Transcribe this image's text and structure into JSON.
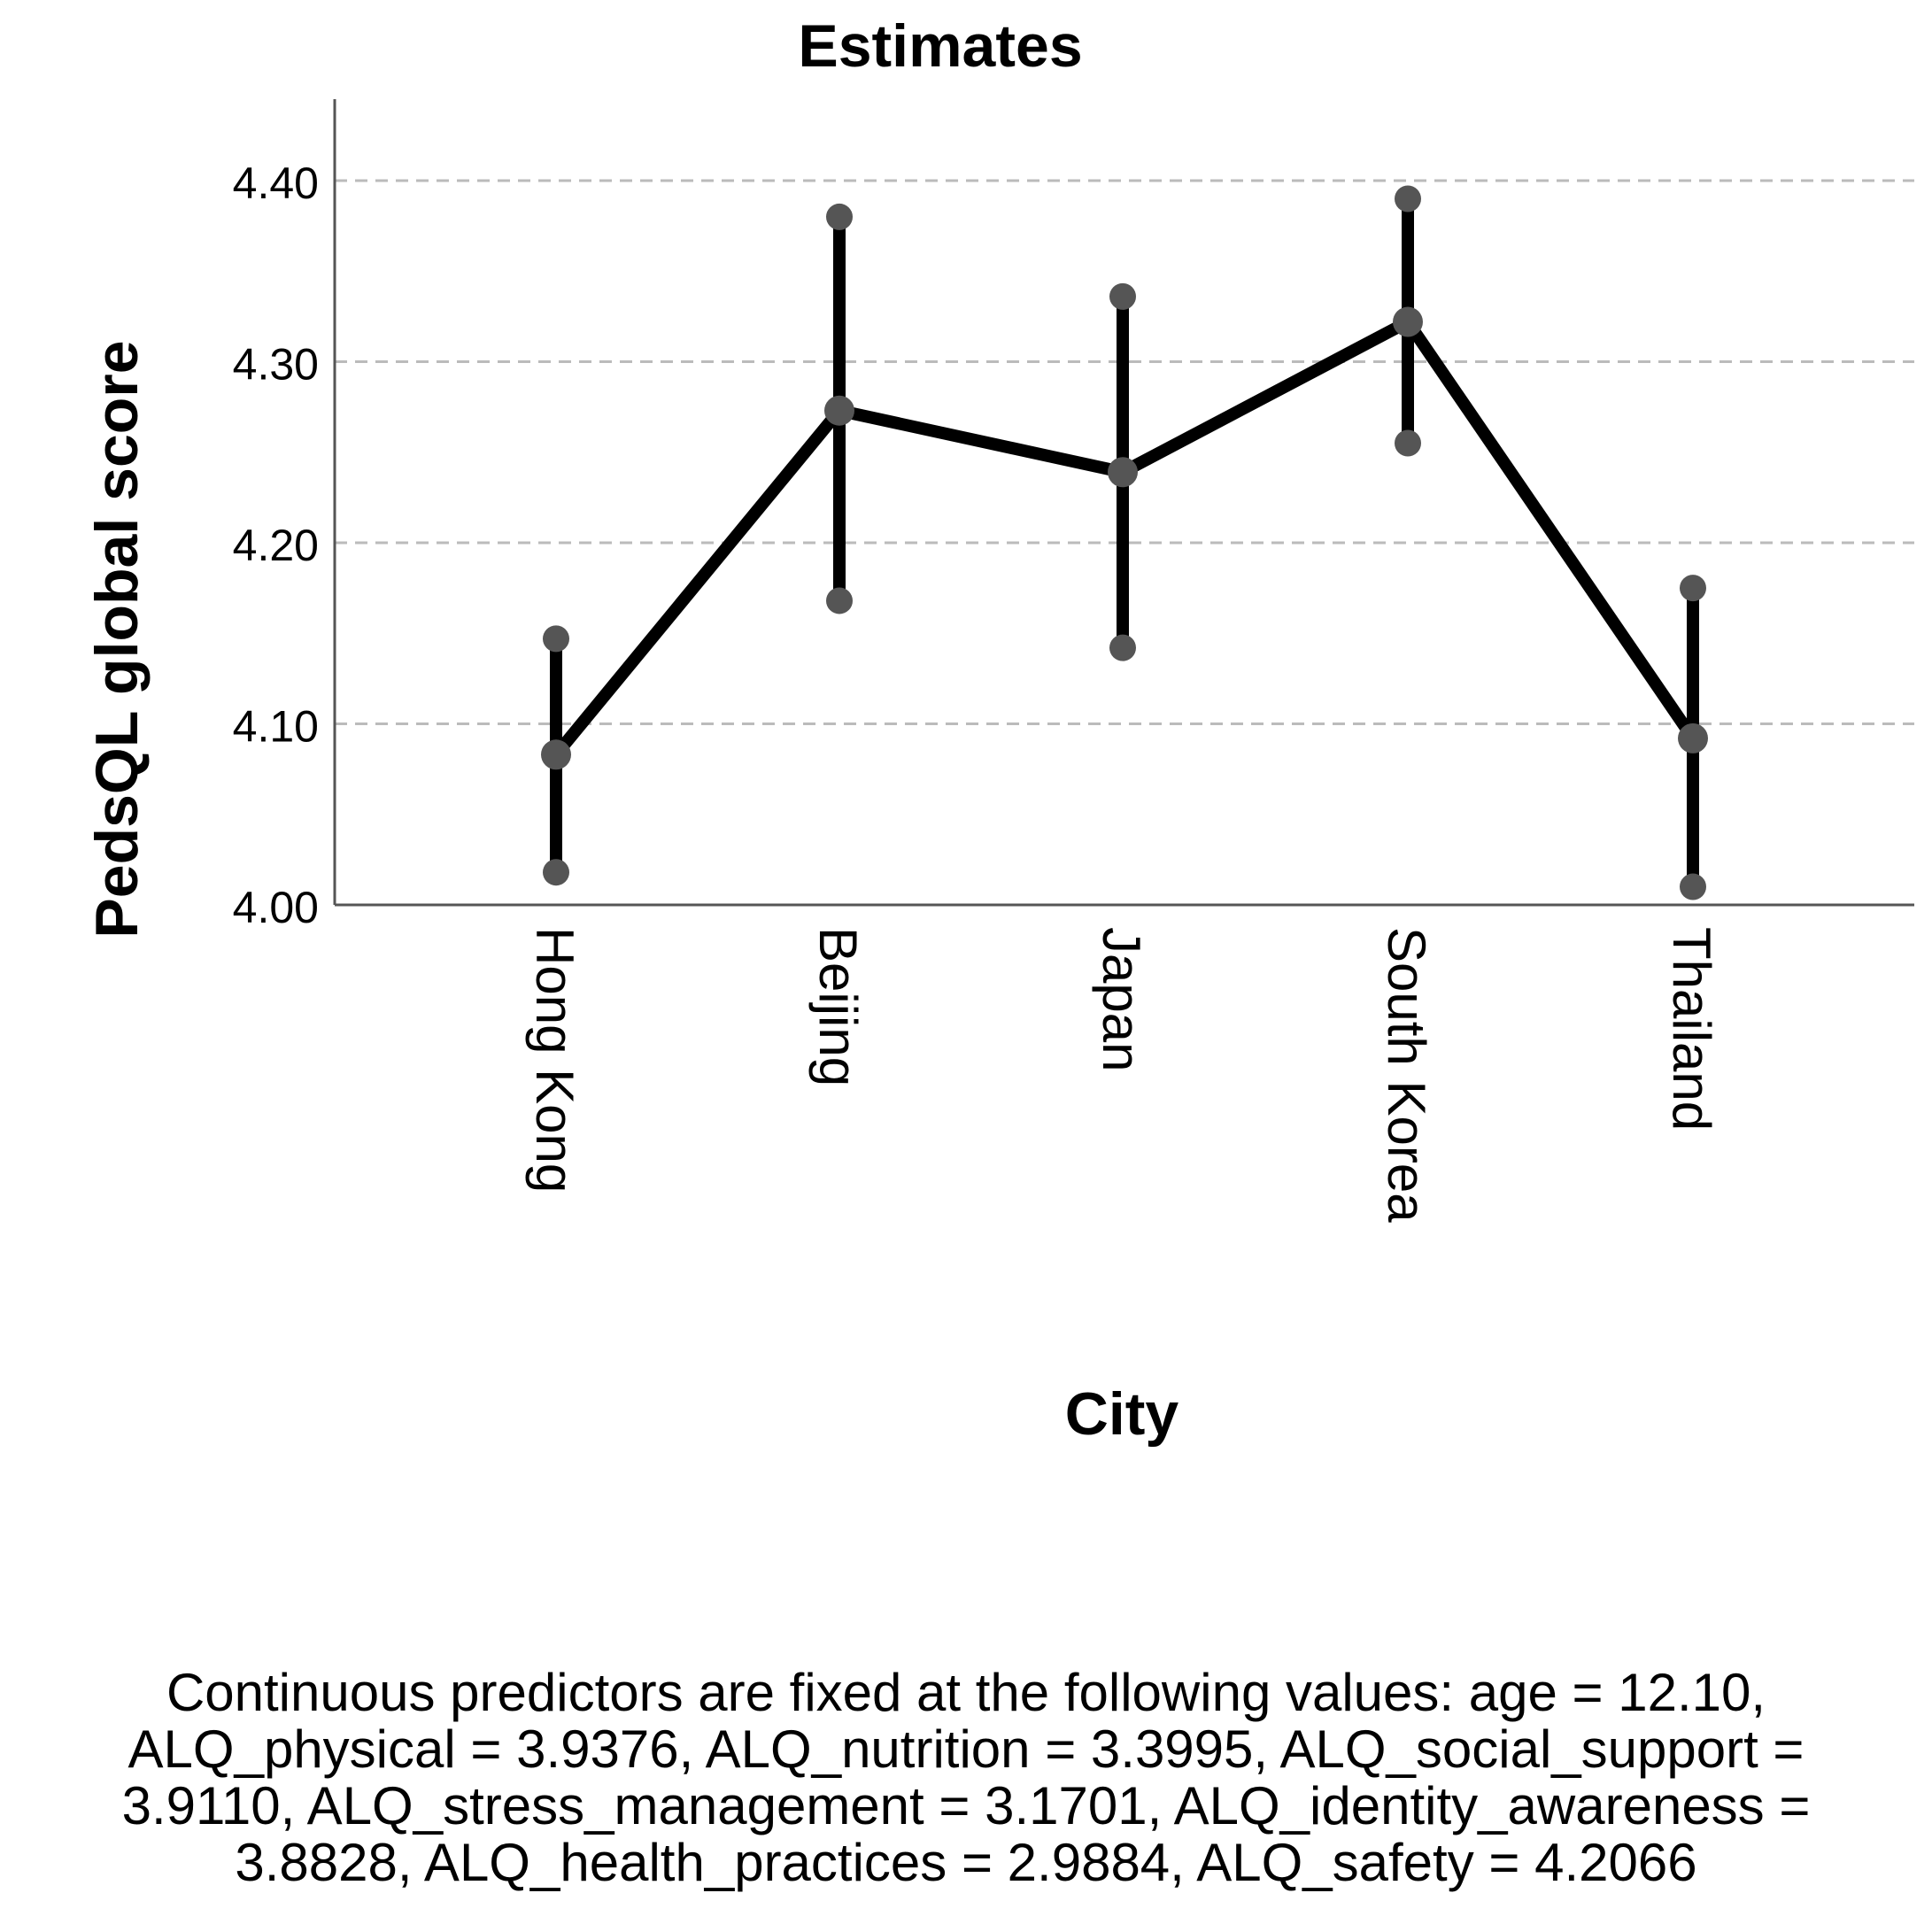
{
  "chart_data": {
    "type": "line",
    "title": "Estimates",
    "xlabel": "City",
    "ylabel": "PedsQL global score",
    "categories": [
      "Hong Kong",
      "Beijing",
      "Japan",
      "South Korea",
      "Thailand"
    ],
    "series": [
      {
        "name": "PedsQL global score",
        "values": [
          4.083,
          4.273,
          4.239,
          4.322,
          4.092
        ],
        "ci_lower": [
          4.018,
          4.168,
          4.142,
          4.255,
          4.01
        ],
        "ci_upper": [
          4.147,
          4.38,
          4.336,
          4.39,
          4.175
        ]
      }
    ],
    "yticks": [
      "4.00",
      "4.10",
      "4.20",
      "4.30",
      "4.40"
    ],
    "ylim": [
      4.0,
      4.445
    ],
    "grid": "dashed horizontal",
    "error_bars": "95% CI"
  },
  "footnote": {
    "lines": [
      "Continuous predictors are fixed at the following values: age = 12.10,",
      "ALQ_physical = 3.9376, ALQ_nutrition = 3.3995, ALQ_social_support =",
      "3.9110, ALQ_stress_management = 3.1701, ALQ_identity_awareness =",
      "3.8828, ALQ_health_practices = 2.9884, ALQ_safety = 4.2066"
    ]
  },
  "colors": {
    "line": "#000000",
    "marker": "#555555",
    "grid": "#bbbbbb",
    "axis": "#555555",
    "text": "#000000"
  }
}
